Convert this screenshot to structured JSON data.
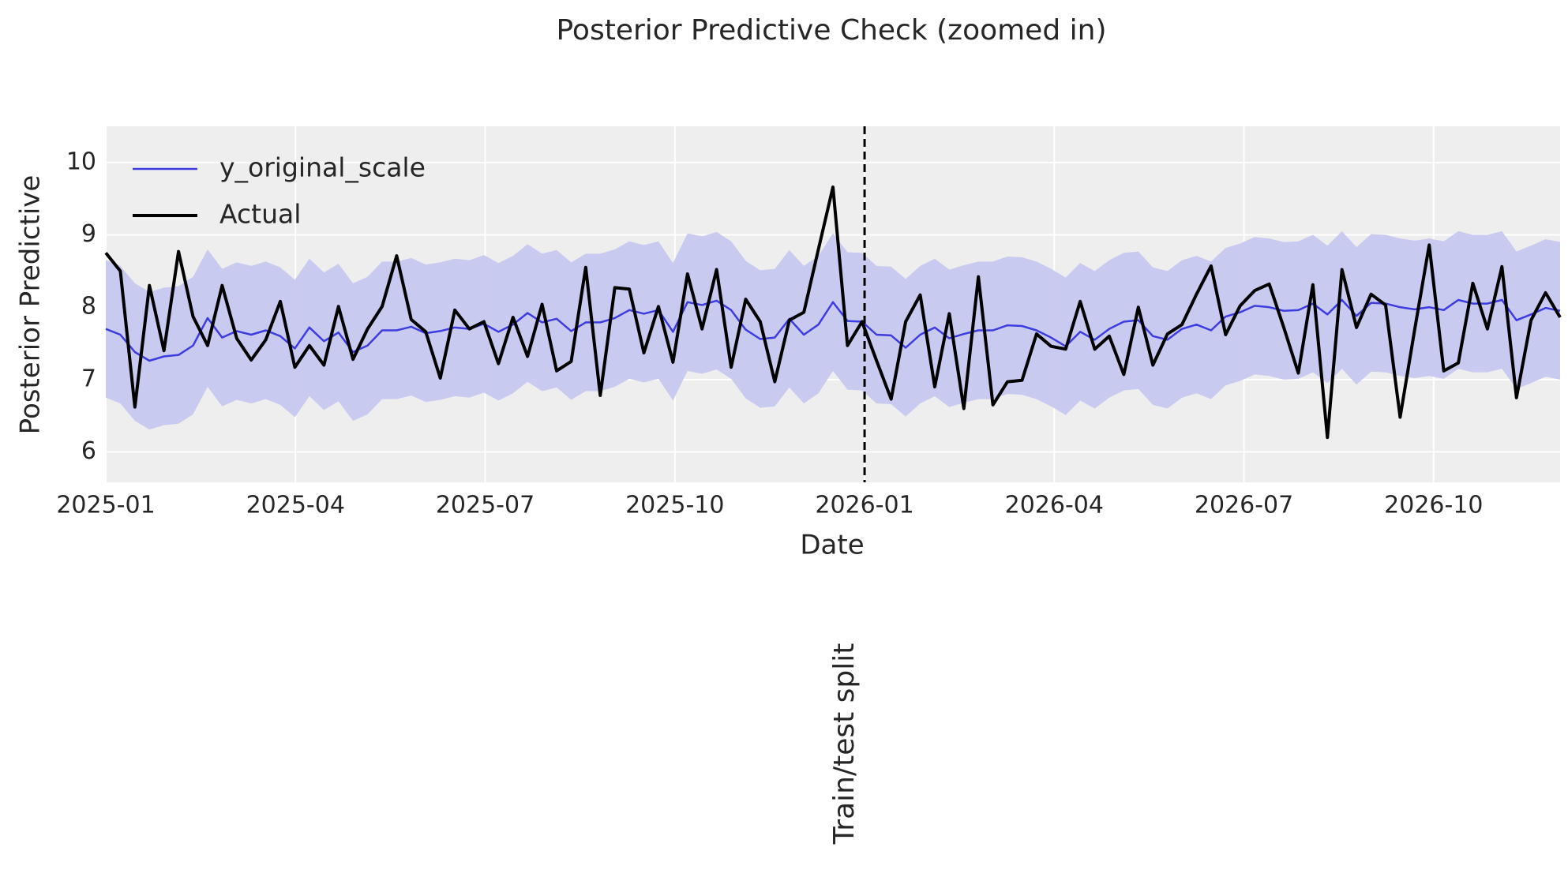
{
  "chart_data": {
    "type": "line",
    "title": "Posterior Predictive Check (zoomed in)",
    "xlabel": "Date",
    "ylabel": "Posterior Predictive",
    "xlim": [
      "2025-01",
      "2026-12"
    ],
    "xticks": [
      "2025-01",
      "2025-04",
      "2025-07",
      "2025-10",
      "2026-01",
      "2026-04",
      "2026-07",
      "2026-10"
    ],
    "ylim": [
      5.58,
      10.5
    ],
    "yticks": [
      6,
      7,
      8,
      9,
      10
    ],
    "grid": true,
    "legend": "upper left",
    "vline": {
      "x": "2026-01",
      "label": "Train/test split"
    },
    "band": {
      "color": "#c4c5ef",
      "lower": [
        6.75,
        6.67,
        6.43,
        6.31,
        6.37,
        6.39,
        6.52,
        6.9,
        6.63,
        6.72,
        6.67,
        6.73,
        6.65,
        6.48,
        6.77,
        6.58,
        6.7,
        6.43,
        6.52,
        6.73,
        6.73,
        6.78,
        6.69,
        6.72,
        6.77,
        6.75,
        6.82,
        6.71,
        6.81,
        6.97,
        6.84,
        6.89,
        6.72,
        6.84,
        6.84,
        6.9,
        7.01,
        6.96,
        7.01,
        6.71,
        7.12,
        7.08,
        7.14,
        7.01,
        6.74,
        6.61,
        6.63,
        6.89,
        6.67,
        6.81,
        7.12,
        6.86,
        6.85,
        6.67,
        6.66,
        6.49,
        6.67,
        6.77,
        6.62,
        6.68,
        6.73,
        6.73,
        6.8,
        6.79,
        6.73,
        6.63,
        6.51,
        6.71,
        6.6,
        6.75,
        6.85,
        6.87,
        6.65,
        6.6,
        6.75,
        6.81,
        6.73,
        6.92,
        6.98,
        7.07,
        7.05,
        7.0,
        7.01,
        7.1,
        6.95,
        7.15,
        6.93,
        7.11,
        7.1,
        7.05,
        7.02,
        7.05,
        7.01,
        7.15,
        7.1,
        7.1,
        7.15,
        6.87,
        6.95,
        7.04,
        7.0
      ],
      "upper": [
        8.65,
        8.57,
        8.33,
        8.21,
        8.27,
        8.29,
        8.42,
        8.8,
        8.53,
        8.62,
        8.57,
        8.63,
        8.55,
        8.38,
        8.67,
        8.48,
        8.6,
        8.33,
        8.42,
        8.63,
        8.63,
        8.68,
        8.59,
        8.62,
        8.67,
        8.65,
        8.72,
        8.61,
        8.71,
        8.87,
        8.74,
        8.79,
        8.62,
        8.74,
        8.74,
        8.8,
        8.91,
        8.86,
        8.91,
        8.61,
        9.02,
        8.98,
        9.04,
        8.91,
        8.64,
        8.51,
        8.53,
        8.79,
        8.57,
        8.71,
        9.02,
        8.76,
        8.75,
        8.57,
        8.56,
        8.39,
        8.57,
        8.67,
        8.52,
        8.58,
        8.63,
        8.63,
        8.7,
        8.69,
        8.63,
        8.53,
        8.41,
        8.61,
        8.5,
        8.65,
        8.75,
        8.77,
        8.55,
        8.5,
        8.65,
        8.71,
        8.63,
        8.82,
        8.88,
        8.97,
        8.95,
        8.9,
        8.91,
        9.0,
        8.85,
        9.05,
        8.83,
        9.01,
        9.0,
        8.95,
        8.92,
        8.95,
        8.91,
        9.05,
        9.0,
        9.0,
        9.05,
        8.77,
        8.85,
        8.94,
        8.9
      ]
    },
    "series": [
      {
        "name": "y_original_scale",
        "color": "#3c3ce0",
        "width": 2.5,
        "values": [
          7.7,
          7.62,
          7.38,
          7.26,
          7.32,
          7.34,
          7.47,
          7.85,
          7.58,
          7.67,
          7.62,
          7.68,
          7.6,
          7.43,
          7.72,
          7.53,
          7.65,
          7.38,
          7.47,
          7.68,
          7.68,
          7.73,
          7.64,
          7.67,
          7.72,
          7.7,
          7.77,
          7.66,
          7.76,
          7.92,
          7.79,
          7.84,
          7.67,
          7.79,
          7.79,
          7.85,
          7.96,
          7.91,
          7.96,
          7.66,
          8.07,
          8.03,
          8.09,
          7.96,
          7.69,
          7.56,
          7.58,
          7.84,
          7.62,
          7.76,
          8.07,
          7.81,
          7.8,
          7.62,
          7.61,
          7.44,
          7.62,
          7.72,
          7.57,
          7.63,
          7.68,
          7.68,
          7.75,
          7.74,
          7.68,
          7.58,
          7.46,
          7.66,
          7.55,
          7.7,
          7.8,
          7.82,
          7.6,
          7.55,
          7.7,
          7.76,
          7.68,
          7.87,
          7.93,
          8.02,
          8.0,
          7.95,
          7.96,
          8.05,
          7.9,
          8.1,
          7.88,
          8.06,
          8.05,
          8.0,
          7.97,
          8.0,
          7.96,
          8.1,
          8.05,
          8.05,
          8.1,
          7.82,
          7.9,
          7.99,
          7.95
        ]
      },
      {
        "name": "Actual",
        "color": "#000000",
        "width": 4,
        "values": [
          8.75,
          8.5,
          6.62,
          8.3,
          7.4,
          8.77,
          7.87,
          7.47,
          8.3,
          7.57,
          7.27,
          7.55,
          8.08,
          7.17,
          7.47,
          7.2,
          8.01,
          7.28,
          7.7,
          8.01,
          8.71,
          7.83,
          7.66,
          7.02,
          7.96,
          7.7,
          7.8,
          7.22,
          7.86,
          7.32,
          8.04,
          7.12,
          7.25,
          8.55,
          6.78,
          8.27,
          8.25,
          7.37,
          8.01,
          7.24,
          8.46,
          7.7,
          8.52,
          7.17,
          8.11,
          7.8,
          6.97,
          7.82,
          7.93,
          8.8,
          9.66,
          7.47,
          7.8,
          7.26,
          6.73,
          7.8,
          8.17,
          6.9,
          7.91,
          6.6,
          8.42,
          6.65,
          6.97,
          6.99,
          7.63,
          7.46,
          7.42,
          8.08,
          7.42,
          7.6,
          7.07,
          8.0,
          7.2,
          7.63,
          7.76,
          8.18,
          8.57,
          7.62,
          8.02,
          8.23,
          8.32,
          7.72,
          7.09,
          8.31,
          6.2,
          8.52,
          7.72,
          8.18,
          8.03,
          6.48,
          7.69,
          8.86,
          7.12,
          7.23,
          8.33,
          7.7,
          8.56,
          6.75,
          7.82,
          8.2,
          7.86
        ]
      }
    ]
  }
}
